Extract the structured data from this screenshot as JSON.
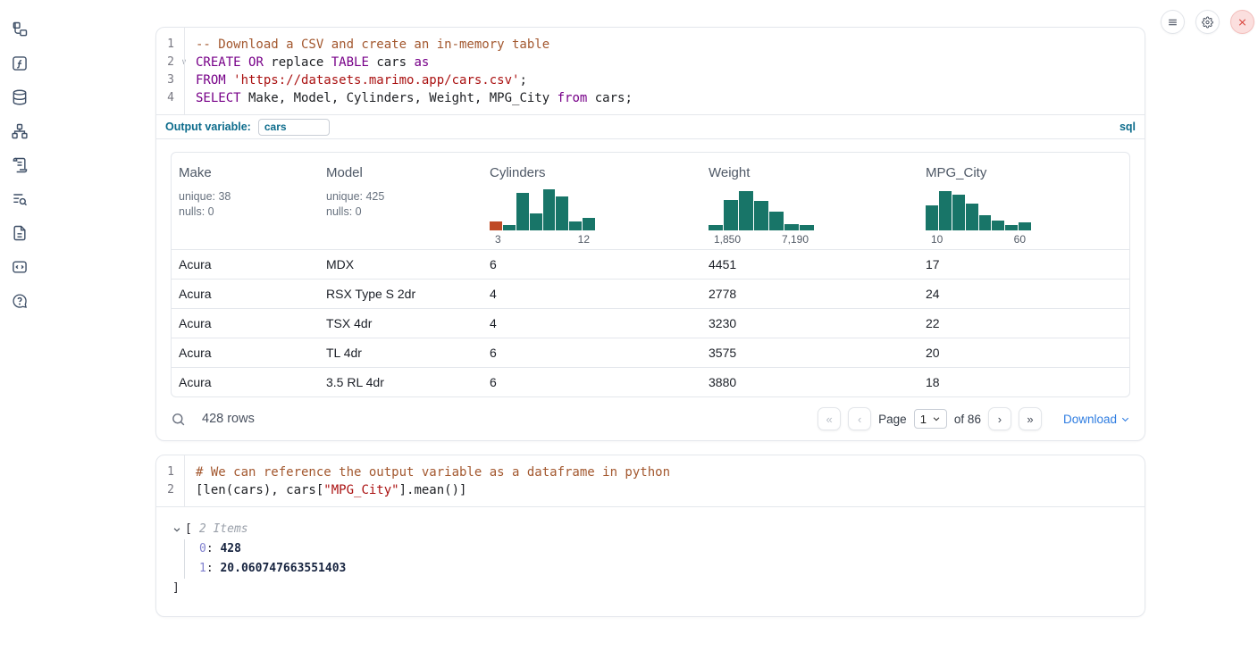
{
  "sidebar": {
    "items": [
      {
        "icon": "file-tree-icon"
      },
      {
        "icon": "function-icon"
      },
      {
        "icon": "database-icon"
      },
      {
        "icon": "dependency-graph-icon"
      },
      {
        "icon": "scroll-icon"
      },
      {
        "icon": "search-list-icon"
      },
      {
        "icon": "document-icon"
      },
      {
        "icon": "snippets-icon"
      },
      {
        "icon": "help-icon"
      }
    ]
  },
  "window_controls": {
    "menu_icon": "hamburger",
    "settings_icon": "gear",
    "close_icon": "x"
  },
  "cell1": {
    "code": {
      "lines": [
        {
          "num": "1",
          "segments": [
            {
              "t": "-- Download a CSV and create an in-memory table",
              "c": "cm"
            }
          ]
        },
        {
          "num": "2",
          "fold": true,
          "segments": [
            {
              "t": "CREATE",
              "c": "kw"
            },
            {
              "t": " ",
              "c": ""
            },
            {
              "t": "OR",
              "c": "kw"
            },
            {
              "t": " replace ",
              "c": ""
            },
            {
              "t": "TABLE",
              "c": "kw"
            },
            {
              "t": " cars ",
              "c": ""
            },
            {
              "t": "as",
              "c": "kw"
            }
          ]
        },
        {
          "num": "3",
          "segments": [
            {
              "t": "FROM",
              "c": "kw"
            },
            {
              "t": " ",
              "c": ""
            },
            {
              "t": "'https://datasets.marimo.app/cars.csv'",
              "c": "str"
            },
            {
              "t": ";",
              "c": ""
            }
          ]
        },
        {
          "num": "4",
          "segments": [
            {
              "t": "SELECT",
              "c": "kw"
            },
            {
              "t": " Make, Model, Cylinders, Weight, MPG_City ",
              "c": ""
            },
            {
              "t": "from",
              "c": "kw"
            },
            {
              "t": " cars;",
              "c": ""
            }
          ]
        }
      ]
    },
    "footer_bar": {
      "label": "Output variable:",
      "value": "cars",
      "language": "sql"
    },
    "table": {
      "columns": [
        {
          "name": "Make",
          "stats": [
            "unique: 38",
            "nulls: 0"
          ]
        },
        {
          "name": "Model",
          "stats": [
            "unique: 425",
            "nulls: 0"
          ]
        },
        {
          "name": "Cylinders",
          "histogram": "Cylinders"
        },
        {
          "name": "Weight",
          "histogram": "Weight"
        },
        {
          "name": "MPG_City",
          "histogram": "MPG_City"
        }
      ],
      "rows": [
        [
          "Acura",
          "MDX",
          "6",
          "4451",
          "17"
        ],
        [
          "Acura",
          "RSX Type S 2dr",
          "4",
          "2778",
          "24"
        ],
        [
          "Acura",
          "TSX 4dr",
          "4",
          "3230",
          "22"
        ],
        [
          "Acura",
          "TL 4dr",
          "6",
          "3575",
          "20"
        ],
        [
          "Acura",
          "3.5 RL 4dr",
          "6",
          "3880",
          "18"
        ]
      ],
      "footer": {
        "row_count": "428 rows",
        "first_icon": "«",
        "prev_icon": "‹",
        "page_label": "Page",
        "page_value": "1",
        "of_label": "of 86",
        "next_icon": "›",
        "last_icon": "»",
        "download_label": "Download"
      }
    }
  },
  "cell2": {
    "code": {
      "lines": [
        {
          "num": "1",
          "segments": [
            {
              "t": "# We can reference the output variable as a dataframe in python",
              "c": "cm"
            }
          ]
        },
        {
          "num": "2",
          "segments": [
            {
              "t": "[len(cars), cars[",
              "c": ""
            },
            {
              "t": "\"MPG_City\"",
              "c": "str"
            },
            {
              "t": "].mean()]",
              "c": ""
            }
          ]
        }
      ]
    },
    "output": {
      "open_bracket": "[",
      "items_label": "2 Items",
      "entries": [
        {
          "key": "0",
          "value": "428"
        },
        {
          "key": "1",
          "value": "20.060747663551403"
        }
      ],
      "close_bracket": "]"
    }
  },
  "chart_data": [
    {
      "type": "histogram",
      "column": "Cylinders",
      "xticks": [
        "3",
        "12"
      ],
      "x_range": [
        3,
        12
      ],
      "bars_rel": [
        0.22,
        0.13,
        0.91,
        0.41,
        1.0,
        0.83,
        0.22,
        0.3
      ],
      "bar_colors": [
        "#bf4a26",
        "#187568",
        "#187568",
        "#187568",
        "#187568",
        "#187568",
        "#187568",
        "#187568"
      ]
    },
    {
      "type": "histogram",
      "column": "Weight",
      "xticks": [
        "1,850",
        "7,190"
      ],
      "x_range": [
        1850,
        7190
      ],
      "bars_rel": [
        0.13,
        0.74,
        0.96,
        0.72,
        0.46,
        0.15,
        0.13
      ],
      "bar_colors": null
    },
    {
      "type": "histogram",
      "column": "MPG_City",
      "xticks": [
        "10",
        "60"
      ],
      "x_range": [
        10,
        60
      ],
      "bars_rel": [
        0.61,
        0.96,
        0.87,
        0.65,
        0.37,
        0.24,
        0.13,
        0.2
      ],
      "bar_colors": null
    }
  ],
  "colors": {
    "accent_blue": "#0d6c8c",
    "link_blue": "#2f7de1",
    "hist_green": "#187568",
    "hist_orange": "#bf4a26"
  }
}
